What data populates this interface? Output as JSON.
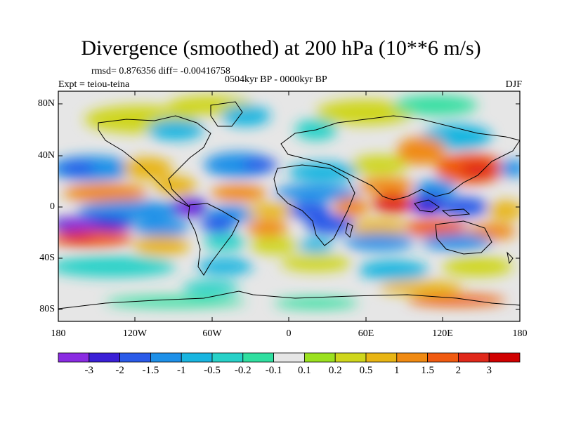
{
  "header": {
    "title": "Divergence (smoothed) at 200 hPa (10**6 m/s)",
    "stats": "rmsd= 0.876356 diff= -0.00416758",
    "period": "0504kyr BP - 0000kyr BP",
    "experiment": "Expt = teiou-teina",
    "season": "DJF"
  },
  "axes": {
    "y_ticks": [
      "80N",
      "40N",
      "0",
      "40S",
      "80S"
    ],
    "x_ticks": [
      "180",
      "120W",
      "60W",
      "0",
      "60E",
      "120E",
      "180"
    ]
  },
  "colorbar": {
    "labels": [
      "-3",
      "-2",
      "-1.5",
      "-1",
      "-0.5",
      "-0.2",
      "-0.1",
      "0.1",
      "0.2",
      "0.5",
      "1",
      "1.5",
      "2",
      "3"
    ],
    "colors": [
      "#8a2be2",
      "#3a1fd6",
      "#2a5ae8",
      "#1e90e8",
      "#19b5e0",
      "#27d1c8",
      "#30dfa0",
      "#e6e6e6",
      "#9be11f",
      "#cfd61c",
      "#e8b514",
      "#f08a12",
      "#f05a10",
      "#e0281a",
      "#d00000"
    ]
  }
}
